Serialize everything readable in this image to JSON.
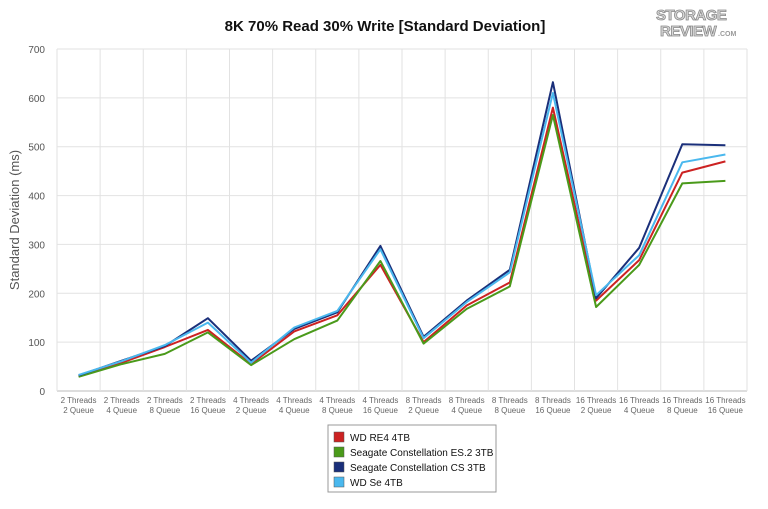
{
  "logo": {
    "line1": "STORAGE",
    "line2": "REVIEW",
    "suffix": ".COM"
  },
  "chart_data": {
    "type": "line",
    "title": "8K 70% Read 30% Write [Standard Deviation]",
    "xlabel": "",
    "ylabel": "Standard Deviation (ms)",
    "ylim": [
      0,
      700
    ],
    "yticks": [
      0,
      100,
      200,
      300,
      400,
      500,
      600,
      700
    ],
    "grid": true,
    "legend_position": "bottom-center",
    "categories": [
      [
        "2 Threads",
        "2 Queue"
      ],
      [
        "2 Threads",
        "4 Queue"
      ],
      [
        "2 Threads",
        "8 Queue"
      ],
      [
        "2 Threads",
        "16 Queue"
      ],
      [
        "4 Threads",
        "2 Queue"
      ],
      [
        "4 Threads",
        "4 Queue"
      ],
      [
        "4 Threads",
        "8 Queue"
      ],
      [
        "4 Threads",
        "16 Queue"
      ],
      [
        "8 Threads",
        "2 Queue"
      ],
      [
        "8 Threads",
        "4 Queue"
      ],
      [
        "8 Threads",
        "8 Queue"
      ],
      [
        "8 Threads",
        "16 Queue"
      ],
      [
        "16 Threads",
        "2 Queue"
      ],
      [
        "16 Threads",
        "4 Queue"
      ],
      [
        "16 Threads",
        "8 Queue"
      ],
      [
        "16 Threads",
        "16 Queue"
      ]
    ],
    "series": [
      {
        "name": "WD RE4 4TB",
        "color": "#cc2222",
        "values": [
          31,
          58,
          90,
          125,
          55,
          122,
          155,
          258,
          100,
          175,
          222,
          580,
          185,
          268,
          447,
          470
        ]
      },
      {
        "name": "Seagate Constellation ES.2 3TB",
        "color": "#4a9a1a",
        "values": [
          29,
          55,
          76,
          120,
          53,
          106,
          144,
          266,
          97,
          168,
          214,
          565,
          172,
          258,
          425,
          430
        ]
      },
      {
        "name": "Seagate Constellation CS 3TB",
        "color": "#1a2f7a",
        "values": [
          32,
          62,
          92,
          149,
          62,
          127,
          161,
          297,
          111,
          185,
          248,
          632,
          190,
          293,
          505,
          503
        ]
      },
      {
        "name": "WD Se 4TB",
        "color": "#4ab8ee",
        "values": [
          33,
          61,
          94,
          140,
          58,
          130,
          164,
          290,
          108,
          182,
          243,
          610,
          196,
          278,
          468,
          484
        ]
      }
    ]
  }
}
